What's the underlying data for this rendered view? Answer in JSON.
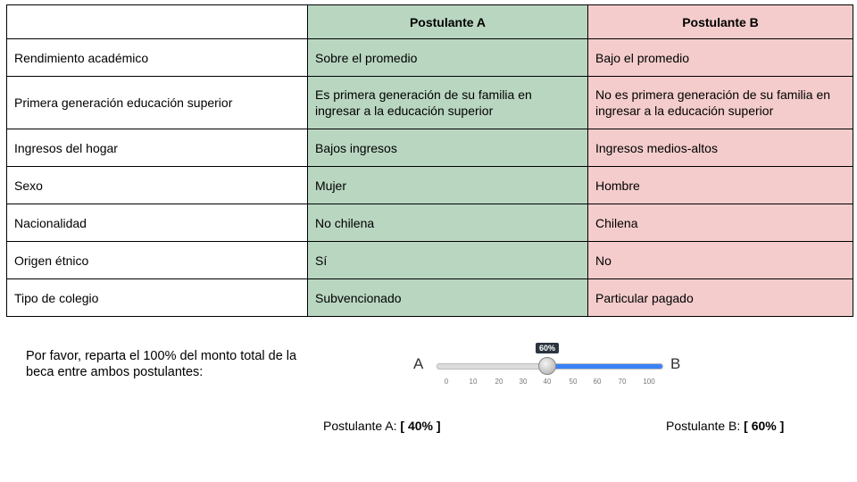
{
  "table": {
    "headers": [
      "",
      "Postulante A",
      "Postulante B"
    ],
    "rows": [
      [
        "Rendimiento académico",
        "Sobre el promedio",
        "Bajo el promedio"
      ],
      [
        "Primera generación educación superior",
        "Es primera generación de su familia en ingresar a la educación superior",
        "No es primera generación de su familia en ingresar a la educación superior"
      ],
      [
        "Ingresos del hogar",
        "Bajos ingresos",
        "Ingresos medios-altos"
      ],
      [
        "Sexo",
        "Mujer",
        "Hombre"
      ],
      [
        "Nacionalidad",
        "No chilena",
        "Chilena"
      ],
      [
        "Origen étnico",
        "Sí",
        "No"
      ],
      [
        "Tipo de colegio",
        "Subvencionado",
        "Particular pagado"
      ]
    ],
    "colors": {
      "a": "#b9d6c1",
      "b": "#f4cccc"
    }
  },
  "prompt": "Por favor, reparta el 100% del monto total de la beca entre ambos postulantes:",
  "slider": {
    "label_left": "A",
    "label_right": "B",
    "value_percent": 40,
    "tooltip": "60%",
    "ticks": [
      "0",
      "10",
      "20",
      "30",
      "40",
      "50",
      "60",
      "70",
      "100"
    ],
    "fill_color": "#3b82f6"
  },
  "results": {
    "a_label": "Postulante A: ",
    "a_value": "[ 40% ]",
    "b_label": "Postulante B: ",
    "b_value": "[ 60% ]"
  }
}
